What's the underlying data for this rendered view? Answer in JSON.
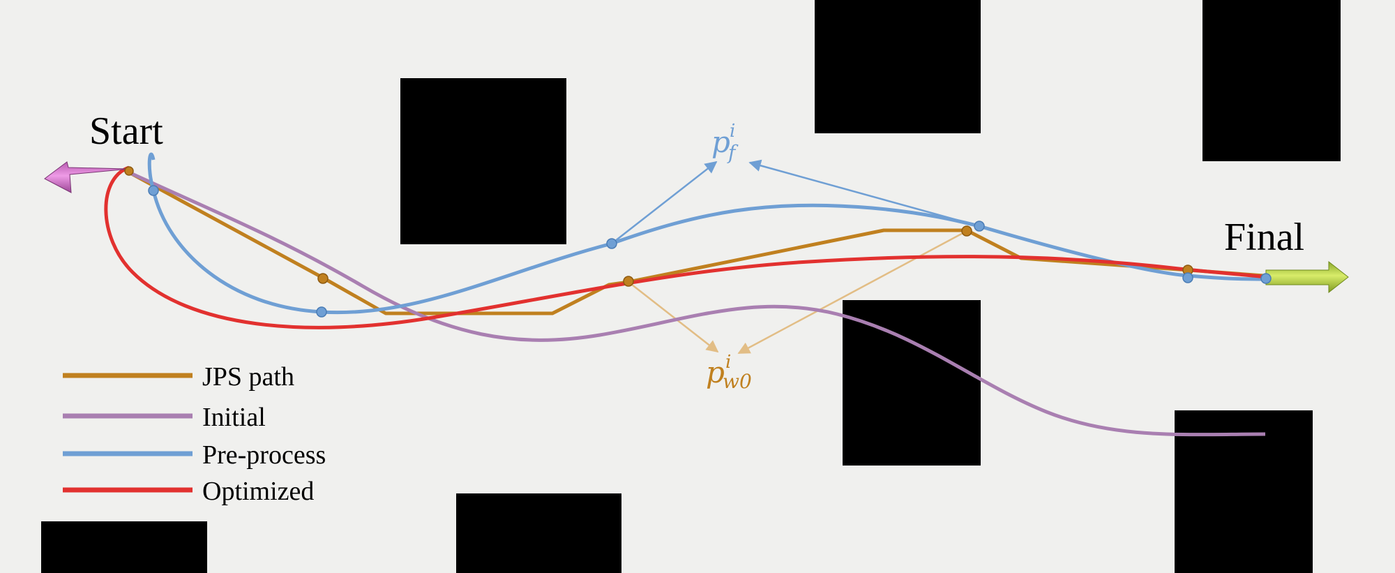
{
  "labels": {
    "start": "Start",
    "final": "Final",
    "pf_base": "p",
    "pf_sub": "f",
    "pf_sup": "i",
    "pw_base": "p",
    "pw_sub": "w0",
    "pw_sup": "i"
  },
  "legend": [
    {
      "label": "JPS path",
      "color": "#c0801f"
    },
    {
      "label": "Initial",
      "color": "#a97fb1"
    },
    {
      "label": "Pre-process",
      "color": "#6f9fd4"
    },
    {
      "label": "Optimized",
      "color": "#e2312f"
    }
  ],
  "colors": {
    "background": "#f0f0ee",
    "obstacle": "#000000",
    "jps": "#c0801f",
    "jps_light": "#e2bd85",
    "initial": "#a97fb1",
    "preprocess": "#6f9fd4",
    "optimized": "#e2312f",
    "start_arrow": "#d97fd0",
    "final_arrow": "#a9c93d"
  }
}
